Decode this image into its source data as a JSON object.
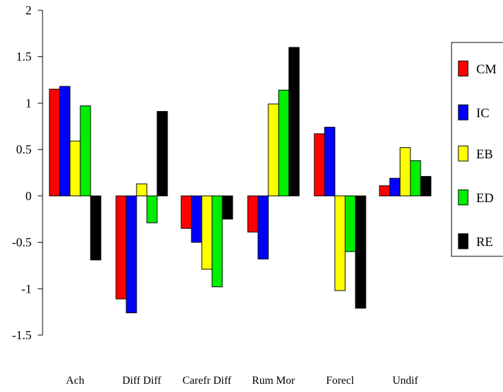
{
  "chart_data": {
    "type": "bar",
    "title": "",
    "xlabel": "",
    "ylabel": "",
    "categories": [
      "Ach",
      "Diff Diff",
      "Carefr Diff",
      "Rum Mor",
      "Forecl",
      "Undif"
    ],
    "ylim": [
      -1.5,
      2
    ],
    "yticks": [
      -1.5,
      -1,
      -0.5,
      0,
      0.5,
      1,
      1.5,
      2
    ],
    "ytick_labels": [
      "-1.5",
      "-1",
      "-0.5",
      "0",
      "0.5",
      "1",
      "1.5",
      "2"
    ],
    "grid": false,
    "legend_position": "right",
    "series": [
      {
        "name": "CM",
        "color": "#ff0000",
        "values": [
          1.15,
          -1.11,
          -0.35,
          -0.39,
          0.67,
          0.11
        ]
      },
      {
        "name": "IC",
        "color": "#0000ff",
        "values": [
          1.18,
          -1.26,
          -0.5,
          -0.68,
          0.74,
          0.19
        ]
      },
      {
        "name": "EB",
        "color": "#ffff00",
        "values": [
          0.59,
          0.13,
          -0.79,
          0.99,
          -1.02,
          0.52
        ]
      },
      {
        "name": "ED",
        "color": "#00ee00",
        "values": [
          0.97,
          -0.29,
          -0.98,
          1.14,
          -0.6,
          0.38
        ]
      },
      {
        "name": "RE",
        "color": "#000000",
        "values": [
          -0.69,
          0.91,
          -0.25,
          1.6,
          -1.21,
          0.21
        ]
      }
    ]
  }
}
